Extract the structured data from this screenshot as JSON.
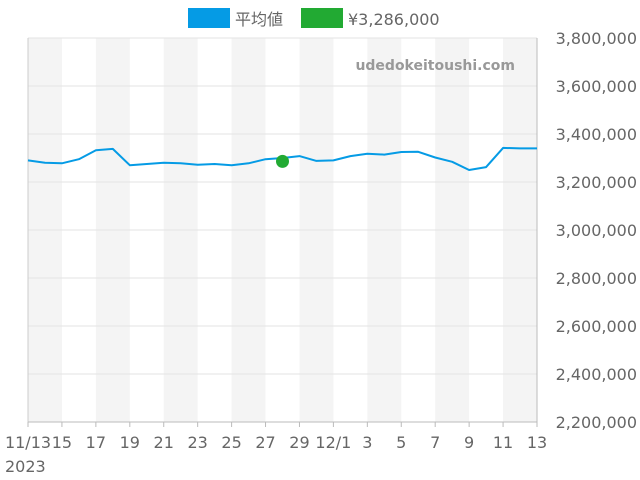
{
  "chart_data": {
    "type": "line",
    "legend": {
      "placement": "top-center",
      "items": [
        {
          "label": "平均値",
          "color": "#059BE5"
        },
        {
          "label": "¥3,286,000",
          "color": "#22AA33"
        }
      ]
    },
    "watermark": "udedokeitoushi.com",
    "x_tick_labels": [
      "11/13",
      "15",
      "17",
      "19",
      "21",
      "23",
      "25",
      "27",
      "29",
      "12/1",
      "3",
      "5",
      "7",
      "9",
      "11",
      "13"
    ],
    "x_year_label": "2023",
    "y_tick_labels": [
      "3,800,000",
      "3,600,000",
      "3,400,000",
      "3,200,000",
      "3,000,000",
      "2,800,000",
      "2,600,000",
      "2,400,000",
      "2,200,000"
    ],
    "ylim": [
      2200000,
      3800000
    ],
    "xlim": [
      "2023-11-13",
      "2023-12-13"
    ],
    "y_axis_side": "right",
    "grid": true,
    "alternating_bands": true,
    "series": [
      {
        "name": "平均値",
        "color": "#059BE5",
        "x": [
          "2023-11-13",
          "2023-11-14",
          "2023-11-15",
          "2023-11-16",
          "2023-11-17",
          "2023-11-18",
          "2023-11-19",
          "2023-11-20",
          "2023-11-21",
          "2023-11-22",
          "2023-11-23",
          "2023-11-24",
          "2023-11-25",
          "2023-11-26",
          "2023-11-27",
          "2023-11-28",
          "2023-11-29",
          "2023-11-30",
          "2023-12-01",
          "2023-12-02",
          "2023-12-03",
          "2023-12-04",
          "2023-12-05",
          "2023-12-06",
          "2023-12-07",
          "2023-12-08",
          "2023-12-09",
          "2023-12-10",
          "2023-12-11",
          "2023-12-12",
          "2023-12-13"
        ],
        "values": [
          3290000,
          3280000,
          3278000,
          3295000,
          3332000,
          3338000,
          3270000,
          3275000,
          3280000,
          3278000,
          3272000,
          3275000,
          3270000,
          3278000,
          3295000,
          3300000,
          3308000,
          3288000,
          3290000,
          3308000,
          3318000,
          3314000,
          3325000,
          3326000,
          3302000,
          3284000,
          3250000,
          3262000,
          3342000,
          3340000,
          3340000
        ]
      }
    ],
    "highlight_point": {
      "x": "2023-11-28",
      "value": 3286000,
      "color": "#22AA33"
    }
  }
}
